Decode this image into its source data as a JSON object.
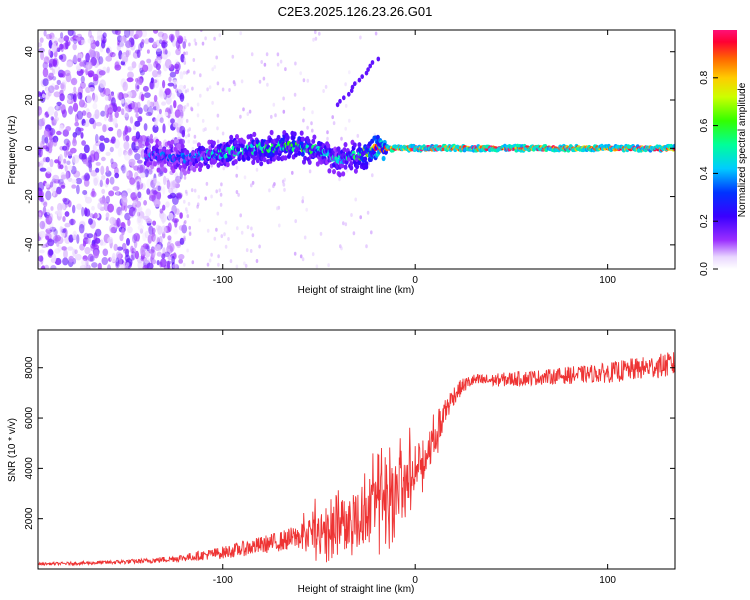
{
  "title": "C2E3.2025.126.23.26.G01",
  "chart_data": [
    {
      "type": "heatmap",
      "title": "C2E3.2025.126.23.26.G01",
      "xlabel": "Height of straight line (km)",
      "ylabel": "Frequency (Hz)",
      "xlim": [
        -196,
        135
      ],
      "ylim": [
        -50,
        49
      ],
      "xticks": [
        -100,
        0,
        100
      ],
      "yticks": [
        -40,
        -20,
        0,
        20,
        40
      ],
      "colorbar": {
        "label": "Normalized spectral amplitude",
        "range": [
          0,
          1
        ],
        "ticks": [
          0.0,
          0.2,
          0.4,
          0.6,
          0.8
        ]
      },
      "features": [
        {
          "name": "noise-band",
          "x_range": [
            -196,
            -120
          ],
          "freq_range": [
            -50,
            49
          ],
          "amplitude": 0.12
        },
        {
          "name": "fading-noise",
          "x_range": [
            -120,
            -20
          ],
          "freq_range": [
            -50,
            49
          ],
          "amplitude": 0.05
        },
        {
          "name": "signal-trace",
          "x": [
            -140,
            -120,
            -100,
            -80,
            -60,
            -50,
            -40,
            -30,
            -20,
            -10,
            0,
            20,
            60,
            100,
            135
          ],
          "freq": [
            -3,
            -4,
            -2,
            0,
            1,
            -1,
            -5,
            -3,
            0,
            0,
            0,
            0,
            0,
            0,
            0
          ],
          "amplitude": [
            0.4,
            0.35,
            0.5,
            0.55,
            0.6,
            0.5,
            0.45,
            0.55,
            0.9,
            0.95,
            0.95,
            0.95,
            0.95,
            0.95,
            0.9
          ]
        },
        {
          "name": "diagonal-streak",
          "x": [
            -40,
            -20
          ],
          "freq": [
            18,
            37
          ],
          "amplitude": 0.1
        }
      ]
    },
    {
      "type": "line",
      "xlabel": "Height of straight line (km)",
      "ylabel": "SNR (10 * v/v)",
      "xlim": [
        -196,
        135
      ],
      "ylim": [
        0,
        9500
      ],
      "xticks": [
        -100,
        0,
        100
      ],
      "yticks": [
        2000,
        4000,
        6000,
        8000
      ],
      "color": "#ee3333",
      "series": [
        {
          "name": "SNR",
          "x": [
            -196,
            -180,
            -160,
            -140,
            -130,
            -120,
            -110,
            -100,
            -90,
            -80,
            -70,
            -60,
            -50,
            -40,
            -30,
            -20,
            -10,
            -5,
            0,
            5,
            10,
            15,
            20,
            25,
            30,
            40,
            50,
            60,
            70,
            80,
            90,
            100,
            110,
            120,
            130,
            135
          ],
          "values": [
            200,
            220,
            260,
            320,
            380,
            450,
            550,
            650,
            800,
            950,
            1100,
            1300,
            1550,
            1800,
            2100,
            2600,
            3200,
            3600,
            4000,
            4400,
            5200,
            6200,
            6900,
            7300,
            7500,
            7500,
            7550,
            7600,
            7650,
            7700,
            7750,
            7800,
            7900,
            8000,
            8100,
            8150
          ],
          "noise_amplitude": [
            50,
            60,
            80,
            100,
            120,
            150,
            200,
            250,
            300,
            350,
            400,
            500,
            700,
            900,
            1100,
            1300,
            1200,
            1000,
            900,
            800,
            700,
            600,
            400,
            300,
            250,
            250,
            300,
            300,
            300,
            350,
            350,
            400,
            450,
            450,
            500,
            500
          ]
        }
      ]
    }
  ]
}
